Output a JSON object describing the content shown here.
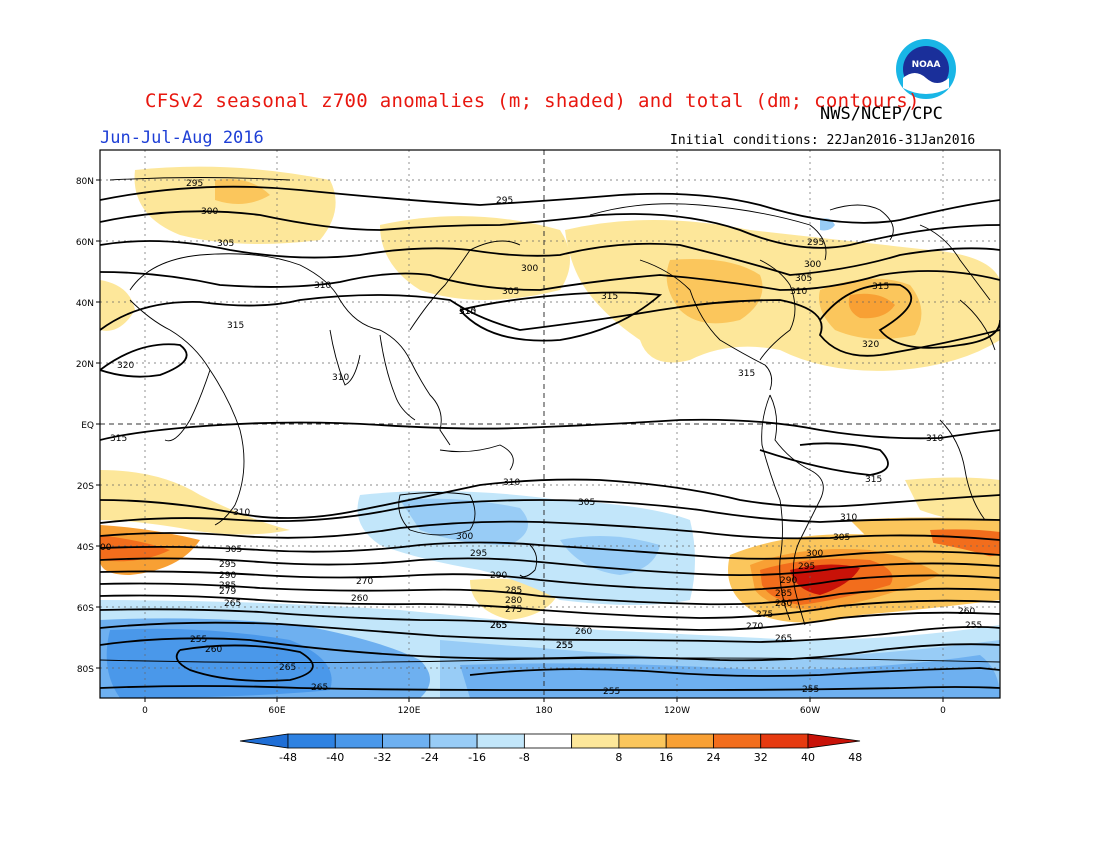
{
  "header": {
    "title": "CFSv2 seasonal z700 anomalies (m; shaded) and total (dm; contours)",
    "agency": "NWS/NCEP/CPC",
    "season": "Jun-Jul-Aug 2016",
    "initial_conditions": "Initial conditions: 22Jan2016-31Jan2016",
    "logo_text": "NOAA"
  },
  "axes": {
    "lat_labels": [
      "80N",
      "60N",
      "40N",
      "20N",
      "EQ",
      "20S",
      "40S",
      "60S",
      "80S"
    ],
    "lon_labels": [
      "0",
      "60E",
      "120E",
      "180",
      "120W",
      "60W",
      "0"
    ]
  },
  "colorbar": {
    "labels": [
      "-48",
      "-40",
      "-32",
      "-24",
      "-16",
      "-8",
      "8",
      "16",
      "24",
      "32",
      "40",
      "48"
    ],
    "colors": [
      "#1e6ed6",
      "#2e82e2",
      "#4a98ea",
      "#6eb0f0",
      "#98ccf6",
      "#c2e6fa",
      "#ffffff",
      "#fde79a",
      "#fbc65c",
      "#f8a034",
      "#f26d1c",
      "#e63a10",
      "#c81208"
    ]
  },
  "contour_labels": [
    "295",
    "300",
    "305",
    "310",
    "315",
    "320",
    "310",
    "315",
    "295",
    "300",
    "305",
    "310",
    "315",
    "310",
    "295",
    "300",
    "305",
    "310",
    "315",
    "320",
    "315",
    "315",
    "310",
    "305",
    "300",
    "295",
    "290",
    "285",
    "280",
    "275",
    "270",
    "265",
    "260",
    "255",
    "310",
    "315",
    "310",
    "305",
    "300",
    "295",
    "290",
    "285",
    "280",
    "275",
    "270",
    "265",
    "260",
    "255",
    "255",
    "265",
    "260",
    "255",
    "255",
    "00",
    "305",
    "295",
    "290",
    "285",
    "279",
    "265",
    "255",
    "260",
    "265",
    "265",
    "270",
    "260",
    "265",
    "260",
    "255",
    "255"
  ]
}
